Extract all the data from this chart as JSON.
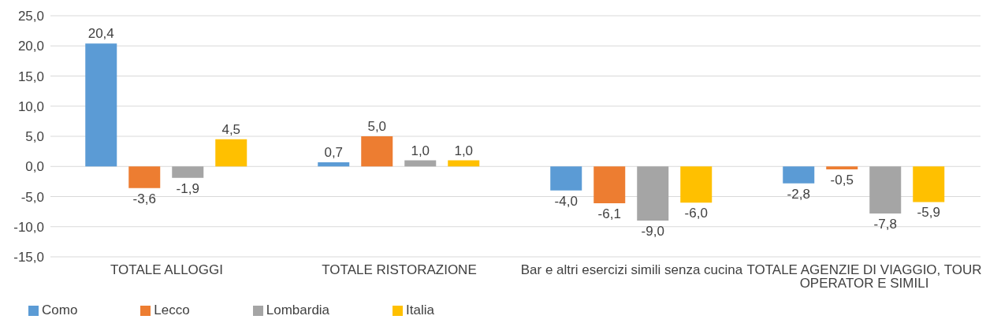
{
  "chart_data": {
    "type": "bar",
    "categories": [
      "TOTALE ALLOGGI",
      "TOTALE RISTORAZIONE",
      "Bar e altri esercizi simili senza cucina",
      "TOTALE AGENZIE DI VIAGGIO, TOUR OPERATOR E SIMILI"
    ],
    "series": [
      {
        "name": "Como",
        "color": "#5b9bd5",
        "values": [
          20.4,
          0.7,
          -4.0,
          -2.8
        ],
        "value_labels": [
          "20,4",
          "0,7",
          "-4,0",
          "-2,8"
        ]
      },
      {
        "name": "Lecco",
        "color": "#ed7d31",
        "values": [
          -3.6,
          5.0,
          -6.1,
          -0.5
        ],
        "value_labels": [
          "-3,6",
          "5,0",
          "-6,1",
          "-0,5"
        ]
      },
      {
        "name": "Lombardia",
        "color": "#a5a5a5",
        "values": [
          -1.9,
          1.0,
          -9.0,
          -7.8
        ],
        "value_labels": [
          "-1,9",
          "1,0",
          "-9,0",
          "-7,8"
        ]
      },
      {
        "name": "Italia",
        "color": "#ffc000",
        "values": [
          4.5,
          1.0,
          -6.0,
          -5.9
        ],
        "value_labels": [
          "4,5",
          "1,0",
          "-6,0",
          "-5,9"
        ]
      }
    ],
    "ylim": [
      -15,
      25
    ],
    "yticks": [
      {
        "value": -15,
        "label": "-15,0"
      },
      {
        "value": -10,
        "label": "-10,0"
      },
      {
        "value": -5,
        "label": "-5,0"
      },
      {
        "value": 0,
        "label": "0,0"
      },
      {
        "value": 5,
        "label": "5,0"
      },
      {
        "value": 10,
        "label": "10,0"
      },
      {
        "value": 15,
        "label": "15,0"
      },
      {
        "value": 20,
        "label": "20,0"
      },
      {
        "value": 25,
        "label": "25,0"
      }
    ],
    "grid": "y",
    "legend": "bottom left"
  }
}
